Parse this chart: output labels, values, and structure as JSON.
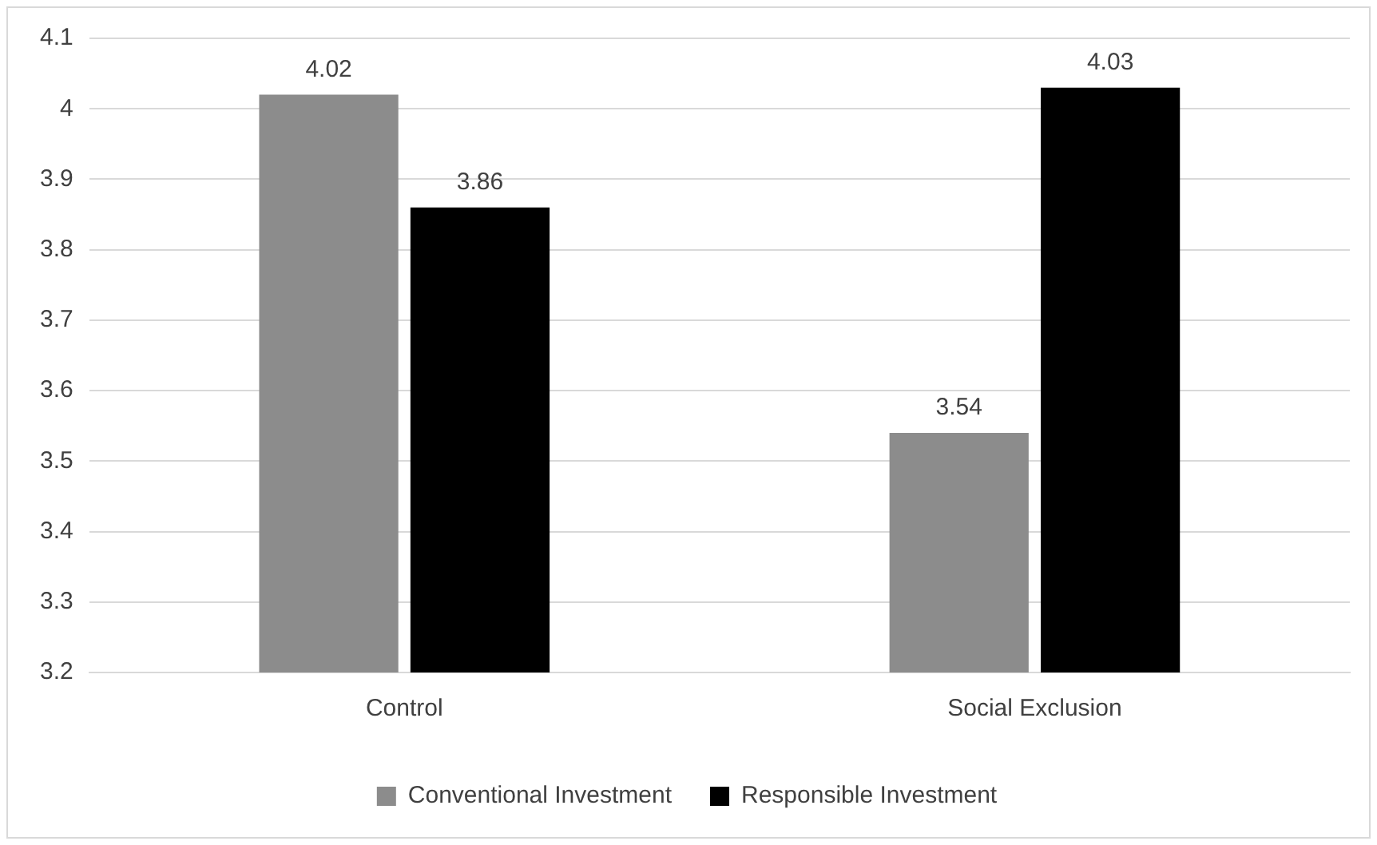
{
  "chart_data": {
    "type": "bar",
    "categories": [
      "Control",
      "Social Exclusion"
    ],
    "series": [
      {
        "name": "Conventional Investment",
        "color": "#8c8c8c",
        "values": [
          4.02,
          3.54
        ]
      },
      {
        "name": "Responsible Investment",
        "color": "#000000",
        "values": [
          3.86,
          4.03
        ]
      }
    ],
    "ylim": [
      3.2,
      4.1
    ],
    "yticks": [
      3.2,
      3.3,
      3.4,
      3.5,
      3.6,
      3.7,
      3.8,
      3.9,
      4,
      4.1
    ],
    "grid": "y",
    "legend": "bottom",
    "data_labels": true
  }
}
